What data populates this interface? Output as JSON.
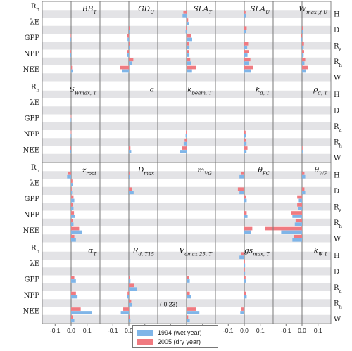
{
  "chart_data": {
    "type": "bar",
    "orientation": "horizontal",
    "x_ticks": [
      "-0.1",
      "0.0",
      "0.1"
    ],
    "xlim": [
      -0.18,
      0.18
    ],
    "left_row_labels": [
      "R",
      "λE",
      "GPP",
      "NPP",
      "NEE"
    ],
    "right_row_labels": [
      "H",
      "D",
      "R",
      "R",
      "W"
    ],
    "left_row_label_subs": [
      "n",
      "",
      "",
      "",
      ""
    ],
    "right_row_label_subs": [
      "",
      "",
      "a",
      "h",
      ""
    ],
    "rows": [
      "Rn",
      "H",
      "λE",
      "D",
      "GPP",
      "Ra",
      "NPP",
      "Rh",
      "NEE",
      "W"
    ],
    "series": [
      {
        "name": "1994 (wet year)",
        "color": "#7fb5e8"
      },
      {
        "name": "2005 (dry year)",
        "color": "#f07a80"
      }
    ],
    "annotations": [
      {
        "panel": 18,
        "text": "(-0.23)"
      }
    ],
    "panels": [
      {
        "title": "BB",
        "sub": "T",
        "wet": [
          0,
          0,
          0,
          0,
          -0.004,
          0,
          -0.005,
          0,
          0.01,
          0
        ],
        "dry": [
          0,
          0,
          0,
          0,
          -0.003,
          0,
          -0.004,
          0,
          0.006,
          0
        ]
      },
      {
        "title": "GD",
        "sub": "U",
        "wet": [
          0,
          0,
          0,
          0.006,
          -0.008,
          0.006,
          -0.01,
          0.02,
          -0.04,
          0
        ],
        "dry": [
          0,
          0,
          0,
          0.008,
          -0.01,
          0.008,
          -0.013,
          0.028,
          -0.055,
          0
        ]
      },
      {
        "title": "SLA",
        "sub": "T",
        "wet": [
          0,
          -0.025,
          0.014,
          -0.006,
          0.035,
          0.018,
          0.018,
          0.03,
          0.034,
          0
        ],
        "dry": [
          0,
          -0.02,
          0.01,
          -0.004,
          0.03,
          0.014,
          0.014,
          0.023,
          0.06,
          0
        ]
      },
      {
        "title": "SLA",
        "sub": "U",
        "wet": [
          0,
          0.01,
          0,
          0.012,
          0,
          0.018,
          0.02,
          0.03,
          0.04,
          0
        ],
        "dry": [
          0,
          0.008,
          0,
          0.015,
          0,
          0.024,
          0.028,
          0.038,
          0.055,
          0
        ]
      },
      {
        "title": "W",
        "sub": "max ,f U",
        "wet": [
          0,
          0,
          0,
          0.006,
          -0.006,
          0.01,
          0.01,
          0.015,
          0.025,
          0
        ],
        "dry": [
          0,
          0,
          0,
          0.008,
          -0.008,
          0.012,
          0.013,
          0.02,
          0.035,
          0
        ]
      },
      {
        "title": "S",
        "sub": "Wmax, T",
        "wet": [
          0,
          0,
          0,
          0,
          -0.003,
          0,
          -0.003,
          0,
          -0.006,
          0
        ],
        "dry": [
          0,
          0,
          0,
          0,
          -0.002,
          0,
          -0.002,
          0,
          -0.004,
          0
        ]
      },
      {
        "title": "a",
        "sub": "",
        "wet": [
          0,
          0,
          0,
          0,
          0,
          0,
          0,
          0,
          0.015,
          0
        ],
        "dry": [
          0,
          0,
          0,
          0,
          0,
          0,
          0,
          0,
          0.01,
          0
        ]
      },
      {
        "title": "k",
        "sub": "beam, T",
        "wet": [
          0,
          0,
          0,
          0,
          0,
          0,
          -0.006,
          -0.018,
          -0.04,
          0
        ],
        "dry": [
          0,
          0,
          0,
          0,
          0,
          0,
          -0.004,
          -0.012,
          -0.028,
          0
        ]
      },
      {
        "title": "k",
        "sub": "d, T",
        "wet": [
          0,
          0,
          0,
          0,
          0,
          0,
          0.01,
          0.014,
          0.014,
          0
        ],
        "dry": [
          0,
          0,
          0,
          0,
          0,
          0,
          0.008,
          0.01,
          0.02,
          0
        ]
      },
      {
        "title": "ρ",
        "sub": "d, T",
        "wet": [
          0,
          0,
          0,
          0,
          0,
          0,
          0,
          0,
          0.004,
          0
        ],
        "dry": [
          0,
          0,
          0,
          0,
          0,
          0,
          0,
          0,
          0.003,
          0
        ]
      },
      {
        "title": "z",
        "sub": "root",
        "wet": [
          0,
          -0.025,
          0.01,
          0.006,
          0.02,
          0.015,
          0.025,
          0.015,
          0.07,
          0.03
        ],
        "dry": [
          0,
          -0.018,
          0.008,
          0.004,
          0.015,
          0.01,
          0.018,
          0.01,
          0.05,
          0.02
        ]
      },
      {
        "title": "D",
        "sub": "max",
        "wet": [
          0,
          0.006,
          0,
          0.03,
          0,
          0,
          0,
          0,
          0,
          0
        ],
        "dry": [
          0,
          0.004,
          0,
          0.02,
          0,
          0,
          0,
          0,
          0,
          0
        ]
      },
      {
        "title": "m",
        "sub": "VG",
        "wet": [
          0,
          0,
          0,
          0,
          0,
          0,
          0,
          0,
          0,
          0
        ],
        "dry": [
          0,
          0,
          0,
          0,
          0,
          0,
          0,
          0,
          0,
          0
        ]
      },
      {
        "title": "θ",
        "sub": "FC",
        "wet": [
          0,
          -0.03,
          0,
          -0.03,
          0.015,
          0,
          0.02,
          0,
          0.04,
          0
        ],
        "dry": [
          0,
          -0.02,
          0,
          -0.04,
          0.01,
          0,
          0.015,
          0,
          0.05,
          0
        ]
      },
      {
        "title": "θ",
        "sub": "WP",
        "wet": [
          0,
          0.02,
          0,
          0.02,
          -0.02,
          -0.025,
          -0.06,
          -0.045,
          -0.13,
          -0.06
        ],
        "dry": [
          0,
          0.015,
          0,
          0.015,
          -0.03,
          -0.03,
          -0.07,
          -0.04,
          -0.23,
          -0.05
        ]
      },
      {
        "title": "α",
        "sub": "T",
        "wet": [
          0,
          0,
          0,
          0,
          0.03,
          0,
          0.04,
          0,
          0.13,
          0.02
        ],
        "dry": [
          0,
          0,
          0,
          0,
          0.02,
          0,
          0.03,
          0,
          0.06,
          0.01
        ]
      },
      {
        "title": "R",
        "sub": "d, T15",
        "wet": [
          0,
          0,
          0,
          0,
          0.01,
          0.05,
          -0.01,
          0.02,
          -0.05,
          0.01
        ],
        "dry": [
          0,
          0,
          0,
          0,
          0.008,
          0.035,
          -0.008,
          0.015,
          -0.035,
          0.006
        ]
      },
      {
        "title": "V",
        "sub": "cmax 25, T",
        "wet": [
          0,
          0,
          0,
          0,
          0.02,
          0,
          0.03,
          0,
          0.08,
          0.02
        ],
        "dry": [
          0,
          0,
          0,
          0,
          0.015,
          0,
          0.02,
          0,
          0.06,
          0.01
        ]
      },
      {
        "title": "gs",
        "sub": "max, T",
        "wet": [
          0,
          -0.03,
          0.005,
          0.005,
          0.01,
          0,
          0.015,
          0,
          -0.025,
          0
        ],
        "dry": [
          0,
          -0.02,
          0.004,
          0.004,
          0.008,
          0,
          0.01,
          0,
          -0.018,
          0
        ]
      },
      {
        "title": "k",
        "sub": "Ψ 1",
        "wet": [
          0,
          0,
          0,
          0,
          0,
          0,
          0,
          0,
          0,
          0
        ],
        "dry": [
          0,
          0,
          0,
          0,
          0,
          0,
          0,
          0,
          0,
          0
        ]
      }
    ]
  }
}
